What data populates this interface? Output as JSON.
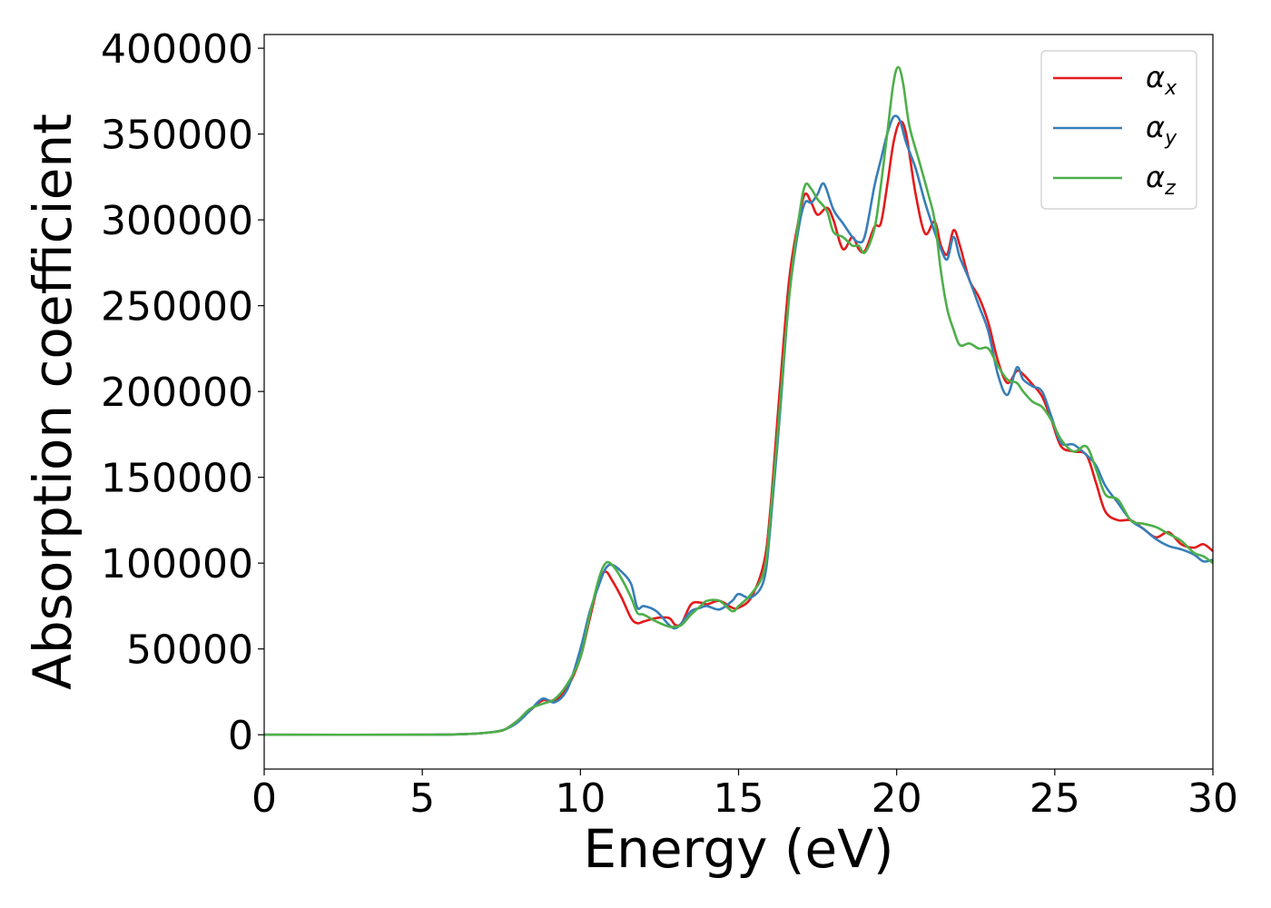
{
  "chart_data": {
    "type": "line",
    "xlabel": "Energy (eV)",
    "ylabel": "Absorption coefficient",
    "xlim": [
      0,
      30
    ],
    "ylim": [
      -20000,
      408000
    ],
    "xticks": [
      0,
      5,
      10,
      15,
      20,
      25,
      30
    ],
    "yticks": [
      0,
      50000,
      100000,
      150000,
      200000,
      250000,
      300000,
      350000,
      400000
    ],
    "grid": false,
    "legend_position": "top-right",
    "series": [
      {
        "name": "α",
        "subscript": "x",
        "color": "#e41a1c",
        "x": [
          0,
          5,
          6.5,
          7.2,
          7.6,
          8,
          8.4,
          8.8,
          9.2,
          9.6,
          10,
          10.3,
          10.6,
          10.8,
          11,
          11.3,
          11.6,
          11.8,
          12,
          12.4,
          12.8,
          13,
          13.2,
          13.5,
          13.8,
          14,
          14.4,
          14.8,
          15,
          15.4,
          15.8,
          16,
          16.3,
          16.6,
          16.9,
          17.1,
          17.3,
          17.5,
          17.8,
          18,
          18.3,
          18.6,
          18.8,
          19,
          19.3,
          19.5,
          19.7,
          19.9,
          20.1,
          20.3,
          20.6,
          20.9,
          21.2,
          21.4,
          21.6,
          21.8,
          22,
          22.3,
          22.6,
          22.9,
          23.2,
          23.5,
          23.8,
          24,
          24.3,
          24.6,
          24.9,
          25.2,
          25.6,
          26,
          26.3,
          26.6,
          27,
          27.4,
          27.8,
          28.2,
          28.6,
          29,
          29.4,
          29.7,
          30
        ],
        "values": [
          0,
          0,
          500,
          1500,
          3000,
          8000,
          14000,
          20000,
          20000,
          28000,
          45000,
          68000,
          90000,
          95000,
          90000,
          80000,
          68000,
          65000,
          66000,
          68000,
          68000,
          64000,
          65000,
          76000,
          77000,
          76000,
          78000,
          74000,
          74000,
          80000,
          100000,
          130000,
          200000,
          265000,
          300000,
          315000,
          310000,
          303000,
          307000,
          300000,
          283000,
          290000,
          283000,
          282000,
          296000,
          298000,
          320000,
          345000,
          357000,
          350000,
          315000,
          292000,
          299000,
          285000,
          280000,
          294000,
          285000,
          265000,
          255000,
          240000,
          218000,
          205000,
          212000,
          210000,
          204000,
          197000,
          183000,
          168000,
          165000,
          163000,
          147000,
          130000,
          125000,
          125000,
          120000,
          115000,
          118000,
          111000,
          109000,
          111000,
          107000
        ]
      },
      {
        "name": "α",
        "subscript": "y",
        "color": "#377eb8",
        "x": [
          0,
          5,
          6.5,
          7.2,
          7.6,
          8,
          8.4,
          8.8,
          9.2,
          9.6,
          10,
          10.3,
          10.6,
          10.8,
          11,
          11.3,
          11.6,
          11.8,
          12,
          12.4,
          12.8,
          13,
          13.2,
          13.5,
          13.8,
          14,
          14.4,
          14.8,
          15,
          15.4,
          15.8,
          16,
          16.3,
          16.6,
          16.9,
          17.1,
          17.3,
          17.5,
          17.7,
          18,
          18.3,
          18.6,
          18.8,
          19,
          19.3,
          19.5,
          19.7,
          19.9,
          20.1,
          20.3,
          20.6,
          20.9,
          21.2,
          21.4,
          21.6,
          21.8,
          22,
          22.3,
          22.6,
          22.9,
          23.2,
          23.5,
          23.8,
          24,
          24.3,
          24.6,
          24.9,
          25.2,
          25.6,
          26,
          26.3,
          26.6,
          27,
          27.4,
          27.8,
          28.2,
          28.6,
          29,
          29.4,
          29.7,
          30
        ],
        "values": [
          0,
          0,
          500,
          1500,
          3000,
          7000,
          14000,
          21000,
          19000,
          27000,
          50000,
          72000,
          88000,
          97000,
          99000,
          95000,
          88000,
          74000,
          75000,
          72000,
          64000,
          62000,
          65000,
          72000,
          74000,
          75000,
          73000,
          78000,
          82000,
          80000,
          90000,
          120000,
          185000,
          255000,
          295000,
          310000,
          310000,
          315000,
          321000,
          306000,
          298000,
          290000,
          287000,
          291000,
          320000,
          335000,
          350000,
          360000,
          358000,
          345000,
          330000,
          310000,
          293000,
          283000,
          277000,
          290000,
          278000,
          265000,
          250000,
          235000,
          210000,
          198000,
          214000,
          207000,
          203000,
          200000,
          185000,
          170000,
          169000,
          163000,
          157000,
          145000,
          135000,
          125000,
          120000,
          114000,
          110000,
          108000,
          105000,
          101000,
          102000
        ]
      },
      {
        "name": "α",
        "subscript": "z",
        "color": "#4daf4a",
        "x": [
          0,
          5,
          6.5,
          7.2,
          7.6,
          8,
          8.4,
          8.8,
          9.2,
          9.6,
          10,
          10.3,
          10.6,
          10.8,
          11,
          11.3,
          11.6,
          11.8,
          12,
          12.4,
          12.8,
          13,
          13.2,
          13.5,
          13.8,
          14,
          14.4,
          14.8,
          15,
          15.4,
          15.8,
          16,
          16.3,
          16.6,
          16.9,
          17.1,
          17.3,
          17.5,
          17.8,
          18,
          18.3,
          18.6,
          18.8,
          19,
          19.3,
          19.5,
          19.7,
          19.9,
          20.05,
          20.2,
          20.4,
          20.7,
          21,
          21.2,
          21.4,
          21.6,
          21.8,
          22,
          22.3,
          22.6,
          22.9,
          23.2,
          23.5,
          23.8,
          24,
          24.3,
          24.6,
          24.9,
          25.2,
          25.6,
          26,
          26.3,
          26.6,
          27,
          27.4,
          27.8,
          28.2,
          28.6,
          29,
          29.4,
          29.7,
          30
        ],
        "values": [
          0,
          0,
          500,
          1500,
          3000,
          8000,
          15000,
          18000,
          21000,
          30000,
          45000,
          70000,
          92000,
          100000,
          99000,
          91000,
          80000,
          71000,
          70000,
          66000,
          63000,
          63000,
          64000,
          70000,
          75000,
          78000,
          78000,
          72000,
          75000,
          82000,
          95000,
          125000,
          190000,
          255000,
          300000,
          320000,
          318000,
          312000,
          305000,
          293000,
          290000,
          285000,
          285000,
          281000,
          295000,
          320000,
          350000,
          380000,
          389000,
          380000,
          355000,
          335000,
          315000,
          300000,
          270000,
          248000,
          236000,
          227000,
          228000,
          225000,
          225000,
          215000,
          207000,
          205000,
          200000,
          194000,
          191000,
          183000,
          172000,
          165000,
          168000,
          155000,
          140000,
          137000,
          125000,
          123000,
          121000,
          117000,
          113000,
          106000,
          104000,
          100000
        ]
      }
    ]
  }
}
